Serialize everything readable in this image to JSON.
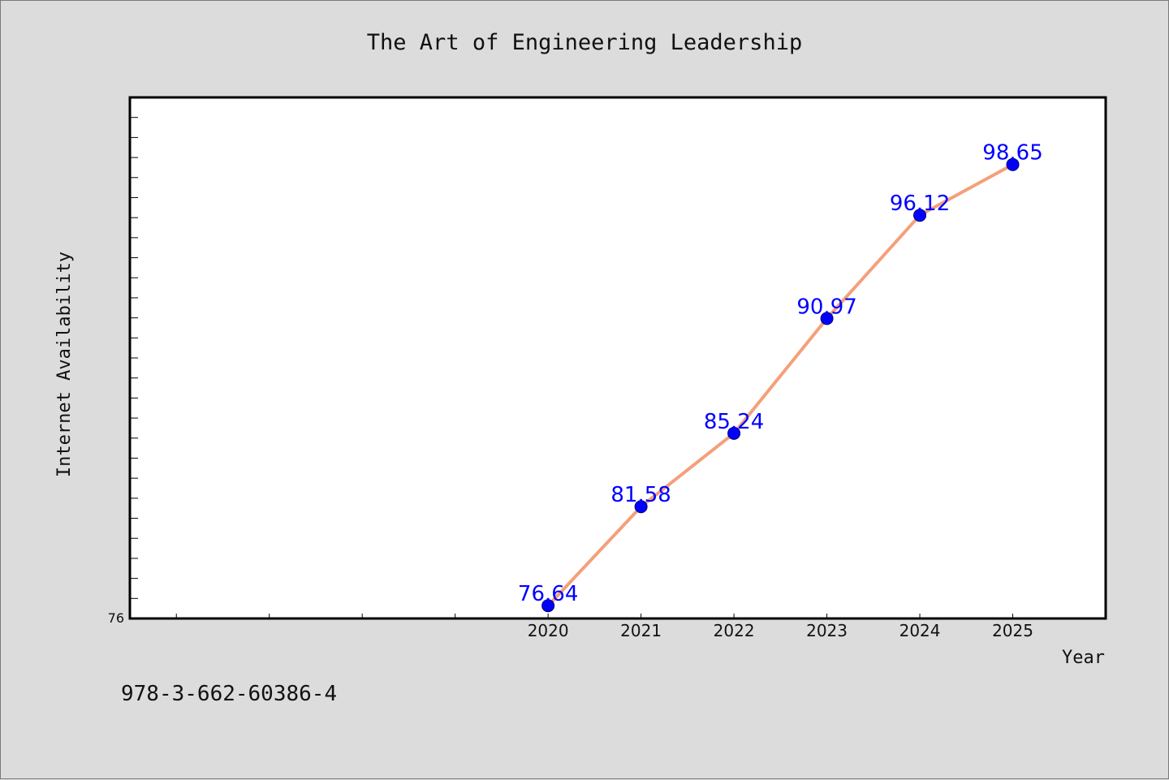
{
  "chart_data": {
    "type": "line",
    "title": "The Art of Engineering Leadership",
    "xlabel": "Year",
    "ylabel": "Internet Availability",
    "x": [
      2020,
      2021,
      2022,
      2023,
      2024,
      2025
    ],
    "x_tick_labels": [
      "2020",
      "2021",
      "2022",
      "2023",
      "2024",
      "2025"
    ],
    "xlim": [
      2015.5,
      2026.0
    ],
    "ylim": [
      76,
      102
    ],
    "y_tick_labels": [
      "76"
    ],
    "series": [
      {
        "values": [
          76.64,
          81.58,
          85.24,
          90.97,
          96.12,
          98.65
        ],
        "labels": [
          "76.64",
          "81.58",
          "85.24",
          "90.97",
          "96.12",
          "98.65"
        ],
        "line_color": "#f4a07a",
        "marker_color": "#0000ff"
      }
    ],
    "grid": false,
    "legend": "none"
  },
  "footer": {
    "isbn": "978-3-662-60386-4"
  },
  "colors": {
    "background": "#dcdcdc",
    "plot_background": "#ffffff",
    "line": "#f4a07a",
    "marker": "#0000ff",
    "label": "#0000ff"
  }
}
